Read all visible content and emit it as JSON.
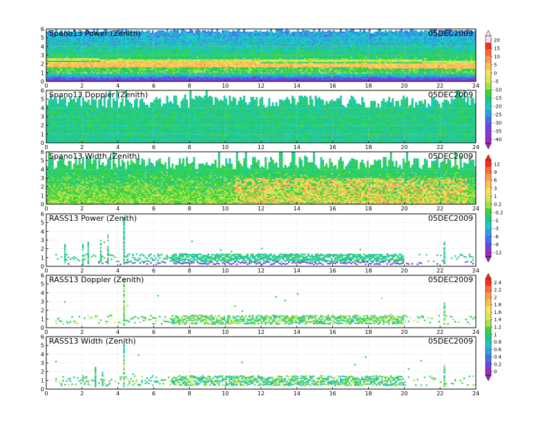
{
  "figure": {
    "date": "05DEC2009"
  },
  "colors": {
    "frame": "#000000",
    "grid": "#c8c8c8",
    "missing": "#ffffff"
  },
  "chart_data": [
    {
      "type": "heatmap",
      "title": "Spano13 Power (Zenith)",
      "date": "05DEC2009",
      "x_ticks": [
        "0",
        "2",
        "4",
        "6",
        "8",
        "10",
        "12",
        "14",
        "16",
        "18",
        "20",
        "22",
        "24"
      ],
      "y_ticks": [
        "0",
        "1",
        "2",
        "3",
        "4",
        "5",
        "6"
      ],
      "xlim": [
        0,
        24
      ],
      "ylim": [
        0,
        6
      ],
      "colorbar_ticks": [
        "20",
        "15",
        "10",
        "5",
        "0",
        "-5",
        "-10",
        "-15",
        "-20",
        "-25",
        "-30",
        "-35",
        "-40"
      ],
      "colorbar_colors": [
        "#ffe0f0",
        "#ff2a1a",
        "#ff6a3a",
        "#ff9a55",
        "#ffc055",
        "#ffe060",
        "#d8e855",
        "#a8e04a",
        "#3cd43c",
        "#20c888",
        "#1ec8c8",
        "#2ea0e0",
        "#4670e8",
        "#6848e0",
        "#8a38d0",
        "#a028c0"
      ],
      "value_range": [
        -45,
        25
      ],
      "colorbar_group": "power",
      "content_top_height": [
        5.6,
        6.0
      ],
      "surface_layer": {
        "height": 0.7,
        "value": -40
      },
      "bands": [
        {
          "hours": [
            0,
            24
          ],
          "height_start": 2.0,
          "height_end": 1.8,
          "value": 5,
          "thickness": 0.55
        },
        {
          "hours": [
            0,
            24
          ],
          "height_start": 2.5,
          "height_end": 2.3,
          "value": -5,
          "thickness": 0.3
        }
      ],
      "vertical_profile": [
        {
          "height": 0.3,
          "value": -35
        },
        {
          "height": 1.0,
          "value": -12
        },
        {
          "height": 3.0,
          "value": -15
        },
        {
          "height": 4.5,
          "value": -22
        },
        {
          "height": 6.0,
          "value": -26
        }
      ],
      "noise": 5,
      "seed": 11
    },
    {
      "type": "heatmap",
      "title": "Spano13 Doppler (Zenith)",
      "date": "05DEC2009",
      "x_ticks": [
        "0",
        "2",
        "4",
        "6",
        "8",
        "10",
        "12",
        "14",
        "16",
        "18",
        "20",
        "22",
        "24"
      ],
      "y_ticks": [
        "0",
        "1",
        "2",
        "3",
        "4",
        "5",
        "6"
      ],
      "xlim": [
        0,
        24
      ],
      "ylim": [
        0,
        6
      ],
      "colorbar_group": "power",
      "value_range": [
        -45,
        25
      ],
      "content_top_height": [
        4.0,
        5.5
      ],
      "vertical_profile": [
        {
          "height": 0.3,
          "value": -17
        },
        {
          "height": 3.0,
          "value": -16
        },
        {
          "height": 6.0,
          "value": -18
        }
      ],
      "noise": 3.5,
      "seed": 23
    },
    {
      "type": "heatmap",
      "title": "Spano13 Width (Zenith)",
      "date": "05DEC2009",
      "x_ticks": [
        "0",
        "2",
        "4",
        "6",
        "8",
        "10",
        "12",
        "14",
        "16",
        "18",
        "20",
        "22",
        "24"
      ],
      "y_ticks": [
        "0",
        "1",
        "2",
        "3",
        "4",
        "5",
        "6"
      ],
      "xlim": [
        0,
        24
      ],
      "ylim": [
        0,
        6
      ],
      "colorbar_ticks": [
        "12",
        "9",
        "6",
        "3",
        "1",
        "0.2",
        "-0.2",
        "-1",
        "-3",
        "-6",
        "-9",
        "-12"
      ],
      "colorbar_colors": [
        "#ff2a1a",
        "#ff6a3a",
        "#ff9a55",
        "#ffc055",
        "#ffe060",
        "#d8e855",
        "#a8e04a",
        "#3cd43c",
        "#20c888",
        "#1ec8c8",
        "#2ea0e0",
        "#4670e8",
        "#6848e0",
        "#a028c0"
      ],
      "value_range": [
        -14,
        14
      ],
      "colorbar_group": "width",
      "content_top_height": [
        4.0,
        5.5
      ],
      "hot_region": {
        "hours": [
          10.5,
          23.5
        ],
        "height_max": 3.0,
        "value": 6
      },
      "vertical_profile": [
        {
          "height": 0.3,
          "value": 0.5
        },
        {
          "height": 2.0,
          "value": -0.5
        },
        {
          "height": 3.5,
          "value": -2
        },
        {
          "height": 6.0,
          "value": -3
        }
      ],
      "noise": 2.2,
      "seed": 37
    },
    {
      "type": "scatter",
      "title": "RASS13 Power (Zenith)",
      "date": "05DEC2009",
      "x_ticks": [
        "0",
        "2",
        "4",
        "6",
        "8",
        "10",
        "12",
        "14",
        "16",
        "18",
        "20",
        "22",
        "24"
      ],
      "y_ticks": [
        "0",
        "1",
        "2",
        "3",
        "4",
        "5",
        "6"
      ],
      "xlim": [
        0,
        24
      ],
      "ylim": [
        0,
        6
      ],
      "colorbar_ticks": [
        "12",
        "9",
        "6",
        "3",
        "1",
        "0.2",
        "-0.2",
        "-1",
        "-3",
        "-6",
        "-9",
        "-12"
      ],
      "colorbar_colors": [
        "#ff2a1a",
        "#ff6a3a",
        "#ff9a55",
        "#ffc055",
        "#ffe060",
        "#d8e855",
        "#a8e04a",
        "#3cd43c",
        "#20c888",
        "#1ec8c8",
        "#2ea0e0",
        "#4670e8",
        "#6848e0",
        "#a028c0"
      ],
      "value_range": [
        -14,
        14
      ],
      "colorbar_group": "rass",
      "main_band": {
        "height": [
          0.6,
          1.5
        ],
        "value": -3,
        "spread": 1.4
      },
      "floor_band": {
        "height": [
          0.3,
          0.6
        ],
        "value": -11
      },
      "activity": [
        {
          "hours": [
            0.5,
            4.5
          ],
          "density": 0.25
        },
        {
          "hours": [
            4.5,
            7.0
          ],
          "density": 0.45
        },
        {
          "hours": [
            7.0,
            20.0
          ],
          "density": 0.9
        },
        {
          "hours": [
            20.0,
            24.0
          ],
          "density": 0.2
        }
      ],
      "spikes": [
        {
          "hour": 4.3,
          "top": 5.8
        },
        {
          "hour": 1.0,
          "top": 2.8
        },
        {
          "hour": 2.0,
          "top": 2.6
        },
        {
          "hour": 2.3,
          "top": 3.0
        },
        {
          "hour": 3.0,
          "top": 3.2
        },
        {
          "hour": 3.4,
          "top": 3.9
        },
        {
          "hour": 22.2,
          "top": 3.2
        }
      ],
      "seed": 51
    },
    {
      "type": "scatter",
      "title": "RASS13 Doppler (Zenith)",
      "date": "05DEC2009",
      "x_ticks": [
        "0",
        "2",
        "4",
        "6",
        "8",
        "10",
        "12",
        "14",
        "16",
        "18",
        "20",
        "22",
        "24"
      ],
      "y_ticks": [
        "0",
        "1",
        "2",
        "3",
        "4",
        "5",
        "6"
      ],
      "xlim": [
        0,
        24
      ],
      "ylim": [
        0,
        6
      ],
      "colorbar_ticks": [
        "2.4",
        "2.2",
        "2",
        "1.8",
        "1.6",
        "1.4",
        "1.2",
        "1",
        "0.8",
        "0.6",
        "0.4",
        "0.2",
        "0"
      ],
      "colorbar_colors": [
        "#ff2a1a",
        "#ff6a3a",
        "#ff9a55",
        "#ffc055",
        "#ffe060",
        "#d8e855",
        "#a8e04a",
        "#3cd43c",
        "#20c888",
        "#1ec8c8",
        "#2ea0e0",
        "#4670e8",
        "#6848e0",
        "#a028c0"
      ],
      "value_range": [
        -0.2,
        2.6
      ],
      "colorbar_group": "rass2",
      "main_band": {
        "height": [
          0.5,
          1.5
        ],
        "value": 1.1,
        "spread": 0.35
      },
      "activity": [
        {
          "hours": [
            0.5,
            4.5
          ],
          "density": 0.25
        },
        {
          "hours": [
            4.5,
            7.0
          ],
          "density": 0.4
        },
        {
          "hours": [
            7.0,
            20.0
          ],
          "density": 0.85
        },
        {
          "hours": [
            20.0,
            24.0
          ],
          "density": 0.25
        }
      ],
      "spikes": [
        {
          "hour": 4.3,
          "top": 5.8
        },
        {
          "hour": 22.2,
          "top": 3.0
        }
      ],
      "seed": 67
    },
    {
      "type": "scatter",
      "title": "RASS13 Width (Zenith)",
      "date": "05DEC2009",
      "x_ticks": [
        "0",
        "2",
        "4",
        "6",
        "8",
        "10",
        "12",
        "14",
        "16",
        "18",
        "20",
        "22",
        "24"
      ],
      "y_ticks": [
        "0",
        "1",
        "2",
        "3",
        "4",
        "5",
        "6"
      ],
      "xlim": [
        0,
        24
      ],
      "ylim": [
        0,
        6
      ],
      "colorbar_group": "rass2",
      "value_range": [
        -0.2,
        2.6
      ],
      "main_band": {
        "height": [
          0.5,
          1.6
        ],
        "value": 1.0,
        "spread": 0.35
      },
      "activity": [
        {
          "hours": [
            0.5,
            4.5
          ],
          "density": 0.35
        },
        {
          "hours": [
            4.5,
            7.0
          ],
          "density": 0.4
        },
        {
          "hours": [
            7.0,
            20.0
          ],
          "density": 0.85
        },
        {
          "hours": [
            20.0,
            24.0
          ],
          "density": 0.25
        }
      ],
      "spikes": [
        {
          "hour": 4.3,
          "top": 5.8
        },
        {
          "hour": 2.0,
          "top": 2.0
        },
        {
          "hour": 2.7,
          "top": 2.6
        },
        {
          "hour": 3.1,
          "top": 2.2
        },
        {
          "hour": 22.2,
          "top": 3.0
        }
      ],
      "seed": 79
    }
  ]
}
